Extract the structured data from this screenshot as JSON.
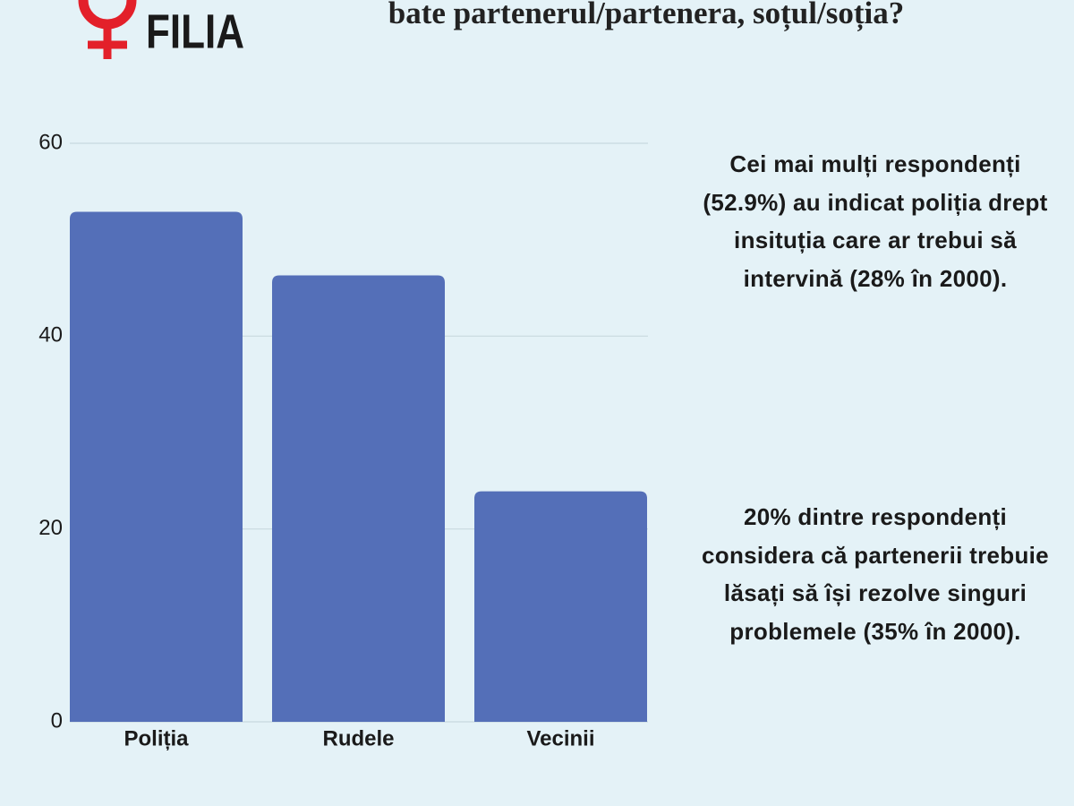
{
  "chart_data": {
    "type": "bar",
    "logo_text": "FILIA",
    "title": "bate partenerul/partenera, soțul/soția?",
    "categories": [
      "Poliția",
      "Rudele",
      "Vecinii"
    ],
    "values": [
      52.9,
      46.3,
      23.9
    ],
    "color": "#546fb8",
    "ylim": [
      0,
      60
    ],
    "yticks": [
      0,
      20,
      40,
      60
    ],
    "grid": true,
    "annotations": [
      "Cei mai mulți respondenți (52.9%) au indicat poliția drept insituția care ar trebui să intervină (28% în 2000).",
      "20% dintre respondenți considera că partenerii trebuie lăsați să își rezolve singuri problemele (35% în 2000)."
    ]
  }
}
